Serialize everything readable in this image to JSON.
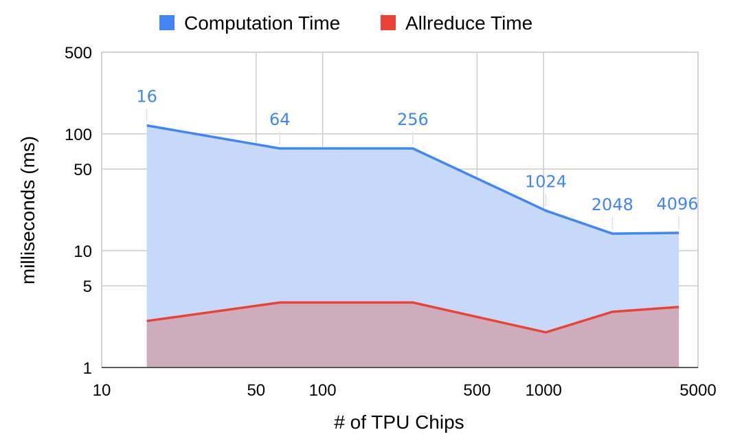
{
  "chart_data": {
    "type": "area",
    "x_scale": "log",
    "y_scale": "log",
    "xlabel": "# of TPU Chips",
    "ylabel": "milliseconds (ms)",
    "xlim": [
      10,
      5000
    ],
    "ylim": [
      1,
      500
    ],
    "x_ticks": [
      {
        "value": 10,
        "label": "10"
      },
      {
        "value": 50,
        "label": "50"
      },
      {
        "value": 100,
        "label": "100"
      },
      {
        "value": 500,
        "label": "500"
      },
      {
        "value": 1000,
        "label": "1000"
      },
      {
        "value": 5000,
        "label": "5000"
      }
    ],
    "y_ticks": [
      {
        "value": 1,
        "label": "1"
      },
      {
        "value": 5,
        "label": "5"
      },
      {
        "value": 10,
        "label": "10"
      },
      {
        "value": 50,
        "label": "50"
      },
      {
        "value": 100,
        "label": "100"
      },
      {
        "value": 500,
        "label": "500"
      }
    ],
    "grid": true,
    "legend_position": "top-center",
    "x": [
      16,
      64,
      256,
      1024,
      2048,
      4096
    ],
    "point_labels": [
      "16",
      "64",
      "256",
      "1024",
      "2048",
      "4096"
    ],
    "series": [
      {
        "name": "Computation Time",
        "color": "#4285f4",
        "fill": "#c6d9f8",
        "values": [
          118,
          75,
          75,
          22,
          14,
          14.2
        ]
      },
      {
        "name": "Allreduce Time",
        "color": "#ea4335",
        "fill": "#cdadbc",
        "values": [
          2.5,
          3.6,
          3.6,
          2.0,
          3.0,
          3.3
        ]
      }
    ]
  }
}
